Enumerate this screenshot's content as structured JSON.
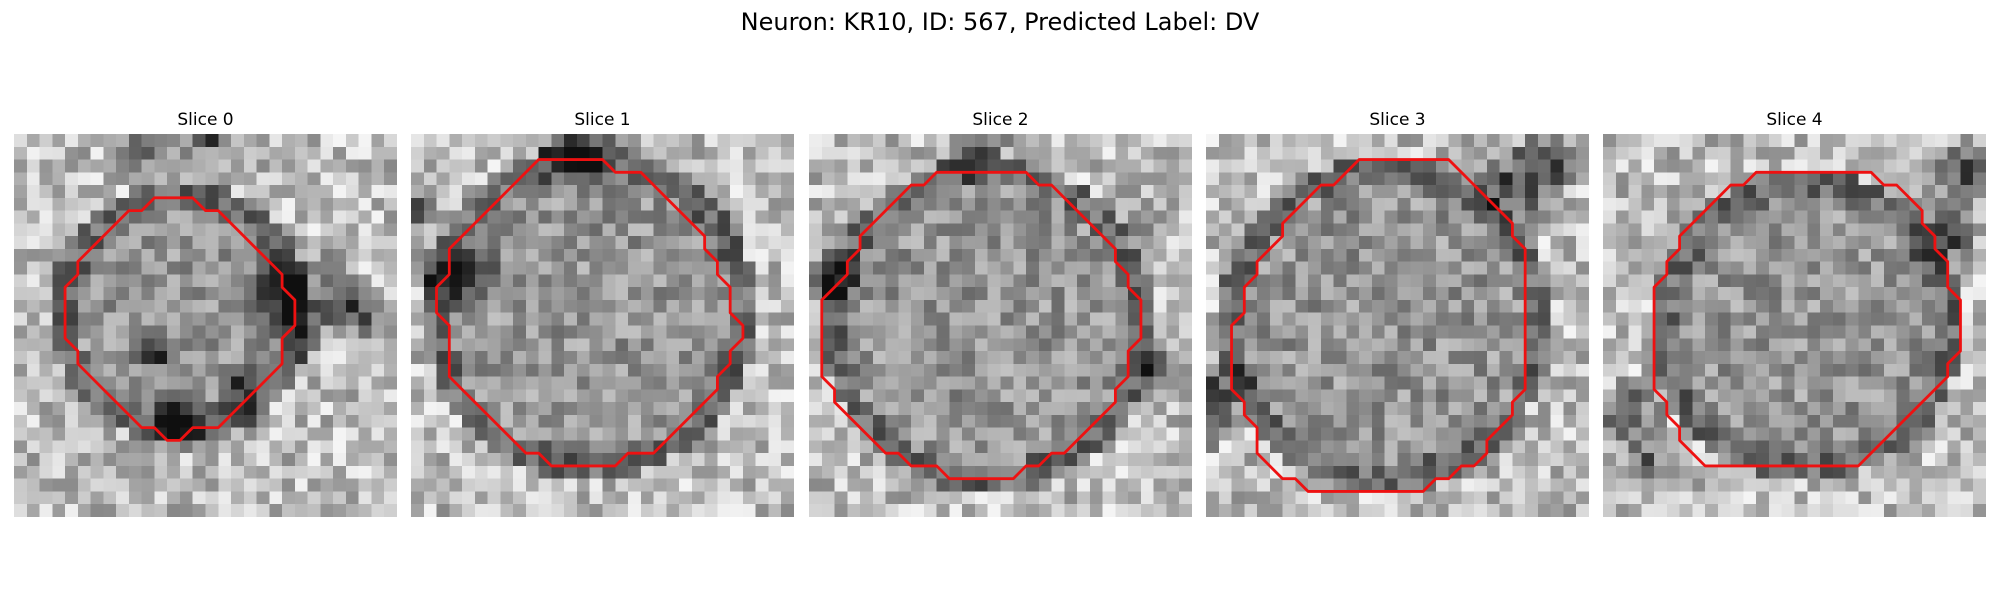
{
  "figure": {
    "title": "Neuron: KR10, ID: 567, Predicted Label: DV"
  },
  "colors": {
    "contour": "#ee1111",
    "background": "#ffffff"
  },
  "panels": [
    {
      "label": "Slice 0",
      "image": "grayscale-microscopy-slice",
      "contour": [
        [
          13,
          5
        ],
        [
          14,
          5
        ],
        [
          15,
          6
        ],
        [
          16,
          6
        ],
        [
          17,
          7
        ],
        [
          18,
          8
        ],
        [
          19,
          9
        ],
        [
          20,
          10
        ],
        [
          21,
          11
        ],
        [
          21,
          12
        ],
        [
          22,
          13
        ],
        [
          22,
          15
        ],
        [
          21,
          16
        ],
        [
          21,
          18
        ],
        [
          20,
          19
        ],
        [
          19,
          20
        ],
        [
          18,
          21
        ],
        [
          17,
          22
        ],
        [
          16,
          23
        ],
        [
          14,
          23
        ],
        [
          13,
          24
        ],
        [
          12,
          24
        ],
        [
          11,
          23
        ],
        [
          10,
          23
        ],
        [
          9,
          22
        ],
        [
          8,
          21
        ],
        [
          7,
          20
        ],
        [
          6,
          19
        ],
        [
          5,
          18
        ],
        [
          5,
          17
        ],
        [
          4,
          16
        ],
        [
          4,
          12
        ],
        [
          5,
          11
        ],
        [
          5,
          10
        ],
        [
          6,
          9
        ],
        [
          7,
          8
        ],
        [
          8,
          7
        ],
        [
          9,
          6
        ],
        [
          10,
          6
        ],
        [
          11,
          5
        ]
      ],
      "dark_blobs": [
        [
          22,
          13,
          5
        ],
        [
          27,
          14,
          3
        ],
        [
          13,
          22,
          3
        ],
        [
          10,
          1,
          3
        ],
        [
          15,
          0,
          3
        ],
        [
          11,
          17,
          2
        ],
        [
          18,
          20,
          2
        ]
      ],
      "ring": [
        13,
        14,
        9
      ]
    },
    {
      "label": "Slice 1",
      "image": "grayscale-microscopy-slice",
      "contour": [
        [
          10,
          2
        ],
        [
          15,
          2
        ],
        [
          16,
          3
        ],
        [
          18,
          3
        ],
        [
          19,
          4
        ],
        [
          20,
          5
        ],
        [
          21,
          6
        ],
        [
          22,
          7
        ],
        [
          23,
          8
        ],
        [
          23,
          9
        ],
        [
          24,
          10
        ],
        [
          24,
          11
        ],
        [
          25,
          12
        ],
        [
          25,
          14
        ],
        [
          26,
          15
        ],
        [
          26,
          16
        ],
        [
          25,
          17
        ],
        [
          25,
          18
        ],
        [
          24,
          19
        ],
        [
          24,
          20
        ],
        [
          23,
          21
        ],
        [
          22,
          22
        ],
        [
          21,
          23
        ],
        [
          20,
          24
        ],
        [
          19,
          25
        ],
        [
          17,
          25
        ],
        [
          16,
          26
        ],
        [
          11,
          26
        ],
        [
          10,
          25
        ],
        [
          9,
          25
        ],
        [
          8,
          24
        ],
        [
          7,
          23
        ],
        [
          6,
          22
        ],
        [
          5,
          21
        ],
        [
          4,
          20
        ],
        [
          3,
          19
        ],
        [
          3,
          15
        ],
        [
          2,
          14
        ],
        [
          2,
          12
        ],
        [
          3,
          11
        ],
        [
          3,
          9
        ],
        [
          4,
          8
        ],
        [
          5,
          7
        ],
        [
          6,
          6
        ],
        [
          7,
          5
        ],
        [
          8,
          4
        ],
        [
          9,
          3
        ]
      ],
      "dark_blobs": [
        [
          13,
          1,
          4
        ],
        [
          4,
          11,
          4
        ],
        [
          1,
          6,
          2
        ]
      ],
      "ring": [
        14,
        14,
        12
      ]
    },
    {
      "label": "Slice 2",
      "image": "grayscale-microscopy-slice",
      "contour": [
        [
          10,
          3
        ],
        [
          17,
          3
        ],
        [
          18,
          4
        ],
        [
          19,
          4
        ],
        [
          20,
          5
        ],
        [
          21,
          6
        ],
        [
          22,
          7
        ],
        [
          23,
          8
        ],
        [
          24,
          9
        ],
        [
          24,
          10
        ],
        [
          25,
          11
        ],
        [
          25,
          12
        ],
        [
          26,
          13
        ],
        [
          26,
          16
        ],
        [
          25,
          17
        ],
        [
          25,
          19
        ],
        [
          24,
          20
        ],
        [
          24,
          21
        ],
        [
          23,
          22
        ],
        [
          22,
          23
        ],
        [
          21,
          24
        ],
        [
          20,
          25
        ],
        [
          19,
          25
        ],
        [
          18,
          26
        ],
        [
          17,
          26
        ],
        [
          16,
          27
        ],
        [
          11,
          27
        ],
        [
          10,
          26
        ],
        [
          8,
          26
        ],
        [
          7,
          25
        ],
        [
          6,
          25
        ],
        [
          5,
          24
        ],
        [
          4,
          23
        ],
        [
          3,
          22
        ],
        [
          2,
          21
        ],
        [
          2,
          20
        ],
        [
          1,
          19
        ],
        [
          1,
          13
        ],
        [
          2,
          12
        ],
        [
          3,
          11
        ],
        [
          3,
          10
        ],
        [
          4,
          9
        ],
        [
          4,
          8
        ],
        [
          5,
          7
        ],
        [
          6,
          6
        ],
        [
          7,
          5
        ],
        [
          8,
          4
        ],
        [
          9,
          4
        ]
      ],
      "dark_blobs": [
        [
          13,
          1,
          3
        ],
        [
          2,
          11,
          3
        ],
        [
          26,
          7,
          2
        ],
        [
          27,
          18,
          2
        ]
      ],
      "ring": [
        14,
        15,
        12
      ]
    },
    {
      "label": "Slice 3",
      "image": "grayscale-microscopy-slice",
      "contour": [
        [
          12,
          2
        ],
        [
          19,
          2
        ],
        [
          20,
          3
        ],
        [
          21,
          4
        ],
        [
          22,
          5
        ],
        [
          23,
          6
        ],
        [
          24,
          7
        ],
        [
          24,
          8
        ],
        [
          25,
          9
        ],
        [
          25,
          20
        ],
        [
          24,
          21
        ],
        [
          24,
          22
        ],
        [
          23,
          23
        ],
        [
          22,
          24
        ],
        [
          22,
          25
        ],
        [
          21,
          26
        ],
        [
          20,
          26
        ],
        [
          19,
          27
        ],
        [
          18,
          27
        ],
        [
          17,
          28
        ],
        [
          8,
          28
        ],
        [
          7,
          27
        ],
        [
          6,
          27
        ],
        [
          5,
          26
        ],
        [
          4,
          25
        ],
        [
          4,
          23
        ],
        [
          3,
          22
        ],
        [
          3,
          21
        ],
        [
          2,
          20
        ],
        [
          2,
          15
        ],
        [
          3,
          14
        ],
        [
          3,
          12
        ],
        [
          4,
          11
        ],
        [
          4,
          10
        ],
        [
          5,
          9
        ],
        [
          6,
          8
        ],
        [
          6,
          7
        ],
        [
          7,
          6
        ],
        [
          8,
          5
        ],
        [
          9,
          4
        ],
        [
          10,
          4
        ],
        [
          11,
          3
        ]
      ],
      "dark_blobs": [
        [
          24,
          4,
          4
        ],
        [
          27,
          2,
          3
        ],
        [
          1,
          20,
          3
        ],
        [
          0,
          23,
          2
        ]
      ],
      "ring": [
        14,
        15,
        12
      ]
    },
    {
      "label": "Slice 4",
      "image": "grayscale-microscopy-slice",
      "contour": [
        [
          12,
          3
        ],
        [
          21,
          3
        ],
        [
          22,
          4
        ],
        [
          23,
          4
        ],
        [
          24,
          5
        ],
        [
          25,
          6
        ],
        [
          25,
          7
        ],
        [
          26,
          8
        ],
        [
          26,
          9
        ],
        [
          27,
          10
        ],
        [
          27,
          12
        ],
        [
          28,
          13
        ],
        [
          28,
          17
        ],
        [
          27,
          18
        ],
        [
          27,
          19
        ],
        [
          26,
          20
        ],
        [
          25,
          21
        ],
        [
          24,
          22
        ],
        [
          23,
          23
        ],
        [
          22,
          24
        ],
        [
          21,
          25
        ],
        [
          20,
          26
        ],
        [
          8,
          26
        ],
        [
          7,
          25
        ],
        [
          6,
          24
        ],
        [
          6,
          23
        ],
        [
          5,
          22
        ],
        [
          5,
          21
        ],
        [
          4,
          20
        ],
        [
          4,
          12
        ],
        [
          5,
          11
        ],
        [
          5,
          10
        ],
        [
          6,
          9
        ],
        [
          6,
          8
        ],
        [
          7,
          7
        ],
        [
          8,
          6
        ],
        [
          9,
          5
        ],
        [
          10,
          4
        ],
        [
          11,
          4
        ]
      ],
      "dark_blobs": [
        [
          28,
          3,
          3
        ],
        [
          27,
          8,
          3
        ],
        [
          2,
          22,
          3
        ],
        [
          3,
          26,
          2
        ]
      ],
      "ring": [
        16,
        15,
        11
      ]
    }
  ]
}
